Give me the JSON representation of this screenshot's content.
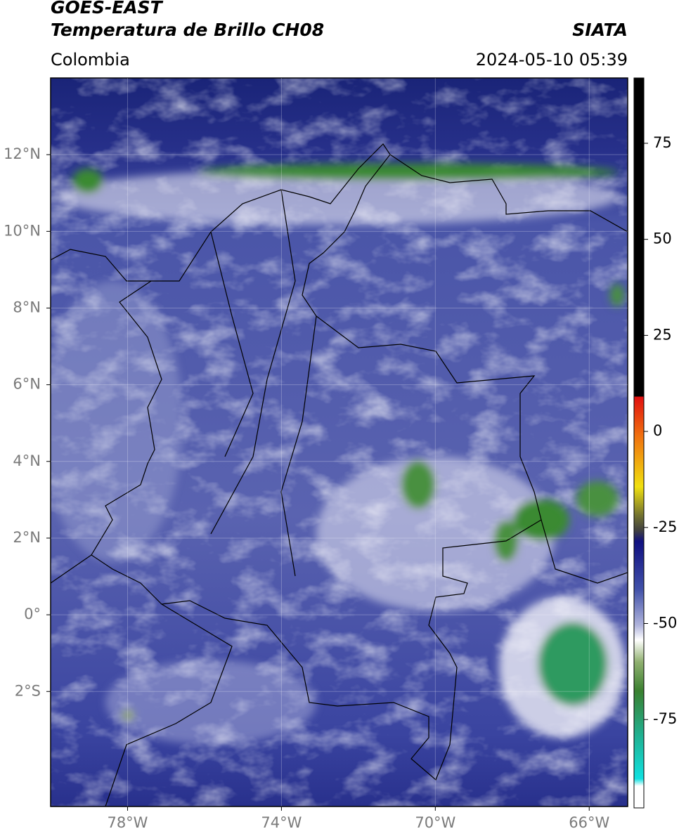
{
  "header": {
    "title": "GOES-EAST",
    "subtitle": "Temperatura de Brillo CH08",
    "source": "SIATA",
    "region": "Colombia",
    "datetime": "2024-05-10 05:39"
  },
  "map": {
    "xlim": [
      -80,
      -65
    ],
    "ylim": [
      -5,
      14
    ],
    "xticks": [
      {
        "value": -78,
        "label": "78°W"
      },
      {
        "value": -74,
        "label": "74°W"
      },
      {
        "value": -70,
        "label": "70°W"
      },
      {
        "value": -66,
        "label": "66°W"
      }
    ],
    "yticks": [
      {
        "value": 12,
        "label": "12°N"
      },
      {
        "value": 10,
        "label": "10°N"
      },
      {
        "value": 8,
        "label": "8°N"
      },
      {
        "value": 6,
        "label": "6°N"
      },
      {
        "value": 4,
        "label": "4°N"
      },
      {
        "value": 2,
        "label": "2°N"
      },
      {
        "value": 0,
        "label": "0°"
      },
      {
        "value": -2,
        "label": "2°S"
      }
    ],
    "grid": true
  },
  "colorbar": {
    "lim": [
      -98,
      92
    ],
    "ticks": [
      75,
      50,
      25,
      0,
      -25,
      -50,
      -75
    ]
  }
}
